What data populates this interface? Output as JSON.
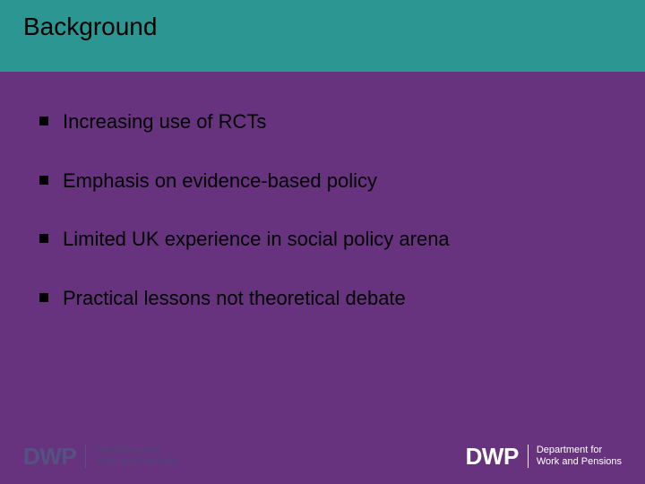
{
  "slide": {
    "background_color": "#67337f",
    "title_band_color": "#2c9693",
    "title": "Background",
    "title_color": "#000000",
    "title_fontsize": 28,
    "bullet_color": "#000000",
    "bullet_text_color": "#000000",
    "bullet_fontsize": 22,
    "bullets": [
      "Increasing use of RCTs",
      "Emphasis on evidence-based policy",
      "Limited UK experience in social policy arena",
      "Practical lessons not theoretical debate"
    ]
  },
  "footer": {
    "logo_left": {
      "acronym": "DWP",
      "line1": "Department for",
      "line2": "Work and Pensions",
      "acronym_color": "#3a7a82",
      "text_color": "#2c5a5f",
      "opacity": 0.45
    },
    "logo_right": {
      "acronym": "DWP",
      "line1": "Department for",
      "line2": "Work and Pensions",
      "acronym_color": "#ffffff",
      "text_color": "#ffffff"
    }
  }
}
